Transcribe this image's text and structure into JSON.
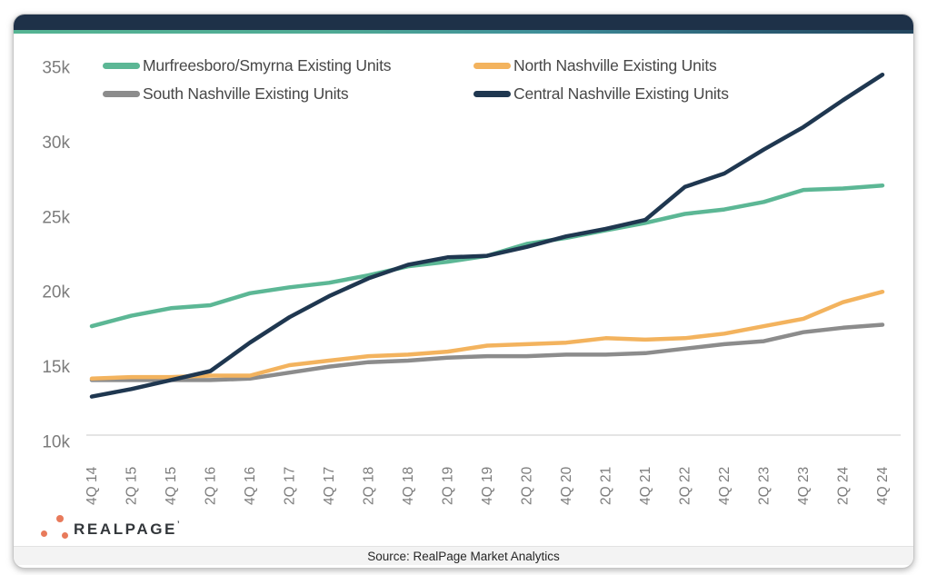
{
  "chart_data": {
    "type": "line",
    "title": "",
    "unit": "existing units",
    "legend_position": "top",
    "grid": "bottom-baseline-only",
    "ylim": [
      10000,
      35000
    ],
    "y_ticks": [
      {
        "label": "35k",
        "value": 35000
      },
      {
        "label": "30k",
        "value": 30000
      },
      {
        "label": "25k",
        "value": 25000
      },
      {
        "label": "20k",
        "value": 20000
      },
      {
        "label": "15k",
        "value": 15000
      },
      {
        "label": "10k",
        "value": 10000
      }
    ],
    "x_tick_labels": [
      "4Q 14",
      "2Q 15",
      "4Q 15",
      "2Q 16",
      "4Q 16",
      "2Q 17",
      "4Q 17",
      "2Q 18",
      "4Q 18",
      "2Q 19",
      "4Q 19",
      "2Q 20",
      "4Q 20",
      "2Q 21",
      "4Q 21",
      "2Q 22",
      "4Q 22",
      "2Q 23",
      "4Q 23",
      "2Q 24",
      "4Q 24"
    ],
    "series": [
      {
        "name": "Murfreesboro/Smyrna Existing Units",
        "color": "#5cb795",
        "values": [
          17700,
          18400,
          18900,
          19100,
          19900,
          20300,
          20600,
          21100,
          21700,
          22000,
          22400,
          23200,
          23600,
          24100,
          24600,
          25200,
          25500,
          26000,
          26800,
          26900,
          27100
        ]
      },
      {
        "name": "North Nashville Existing Units",
        "color": "#f3b35e",
        "values": [
          14200,
          14300,
          14300,
          14400,
          14400,
          15100,
          15400,
          15700,
          15800,
          16000,
          16400,
          16500,
          16600,
          16900,
          16800,
          16900,
          17200,
          17700,
          18200,
          19300,
          20000
        ]
      },
      {
        "name": "South Nashville Existing Units",
        "color": "#8c8c8c",
        "values": [
          14100,
          14100,
          14100,
          14100,
          14200,
          14600,
          15000,
          15300,
          15400,
          15600,
          15700,
          15700,
          15800,
          15800,
          15900,
          16200,
          16500,
          16700,
          17300,
          17600,
          17800
        ]
      },
      {
        "name": "Central Nashville Existing Units",
        "color": "#1f3750",
        "values": [
          13000,
          13500,
          14100,
          14700,
          16600,
          18300,
          19700,
          20900,
          21800,
          22300,
          22400,
          23000,
          23700,
          24200,
          24800,
          27000,
          27900,
          29500,
          31000,
          32800,
          34500
        ]
      }
    ]
  },
  "footer": {
    "source_text": "Source: RealPage Market Analytics",
    "logo_text": "REALPAGE",
    "logo_mark": "’"
  },
  "theme": {
    "topbar_color": "#1e3148",
    "accent_gradient_start": "#55b493",
    "accent_gradient_end": "#24455e",
    "axis_text_color": "#7c7c7c",
    "legend_text_color": "#474747",
    "baseline_color": "#dcdcdc",
    "logo_dot_color": "#e87a5b",
    "source_strip_color": "#f3f3f3"
  }
}
